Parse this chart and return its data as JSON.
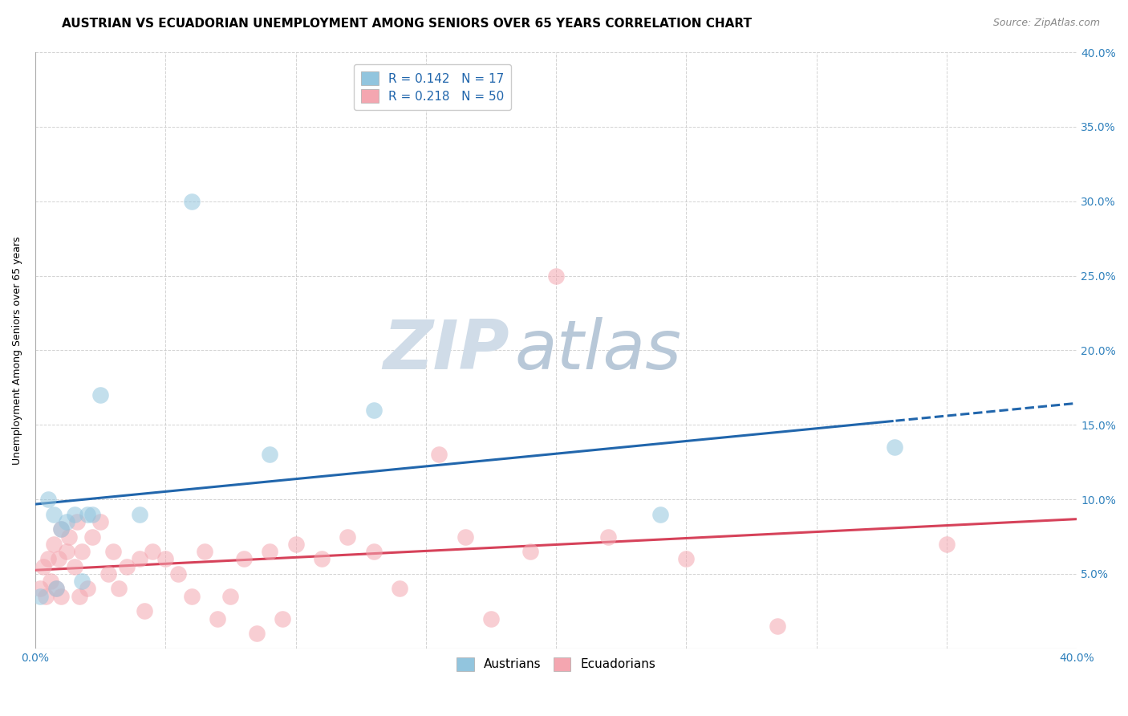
{
  "title": "AUSTRIAN VS ECUADORIAN UNEMPLOYMENT AMONG SENIORS OVER 65 YEARS CORRELATION CHART",
  "source": "Source: ZipAtlas.com",
  "ylabel": "Unemployment Among Seniors over 65 years",
  "xlim": [
    0.0,
    0.4
  ],
  "ylim": [
    0.0,
    0.4
  ],
  "austrians_R": 0.142,
  "austrians_N": 17,
  "ecuadorians_R": 0.218,
  "ecuadorians_N": 50,
  "austrians_color": "#92c5de",
  "austrians_line_color": "#2166ac",
  "ecuadorians_color": "#f4a6b0",
  "ecuadorians_line_color": "#d6425a",
  "legend_label_austrians": "Austrians",
  "legend_label_ecuadorians": "Ecuadorians",
  "austrians_x": [
    0.002,
    0.005,
    0.007,
    0.008,
    0.01,
    0.012,
    0.015,
    0.018,
    0.02,
    0.022,
    0.025,
    0.04,
    0.06,
    0.09,
    0.13,
    0.24,
    0.33
  ],
  "austrians_y": [
    0.035,
    0.1,
    0.09,
    0.04,
    0.08,
    0.085,
    0.09,
    0.045,
    0.09,
    0.09,
    0.17,
    0.09,
    0.3,
    0.13,
    0.16,
    0.09,
    0.135
  ],
  "ecuadorians_x": [
    0.002,
    0.003,
    0.004,
    0.005,
    0.006,
    0.007,
    0.008,
    0.009,
    0.01,
    0.01,
    0.012,
    0.013,
    0.015,
    0.016,
    0.017,
    0.018,
    0.02,
    0.022,
    0.025,
    0.028,
    0.03,
    0.032,
    0.035,
    0.04,
    0.042,
    0.045,
    0.05,
    0.055,
    0.06,
    0.065,
    0.07,
    0.075,
    0.08,
    0.085,
    0.09,
    0.095,
    0.1,
    0.11,
    0.12,
    0.13,
    0.14,
    0.155,
    0.165,
    0.175,
    0.19,
    0.2,
    0.22,
    0.25,
    0.285,
    0.35
  ],
  "ecuadorians_y": [
    0.04,
    0.055,
    0.035,
    0.06,
    0.045,
    0.07,
    0.04,
    0.06,
    0.08,
    0.035,
    0.065,
    0.075,
    0.055,
    0.085,
    0.035,
    0.065,
    0.04,
    0.075,
    0.085,
    0.05,
    0.065,
    0.04,
    0.055,
    0.06,
    0.025,
    0.065,
    0.06,
    0.05,
    0.035,
    0.065,
    0.02,
    0.035,
    0.06,
    0.01,
    0.065,
    0.02,
    0.07,
    0.06,
    0.075,
    0.065,
    0.04,
    0.13,
    0.075,
    0.02,
    0.065,
    0.25,
    0.075,
    0.06,
    0.015,
    0.07
  ],
  "watermark_zip": "ZIP",
  "watermark_atlas": "atlas",
  "watermark_color_zip": "#d0dce8",
  "watermark_color_atlas": "#b8c8d8",
  "title_fontsize": 11,
  "source_fontsize": 9,
  "axis_label_fontsize": 9,
  "tick_fontsize": 10,
  "legend_fontsize": 11
}
